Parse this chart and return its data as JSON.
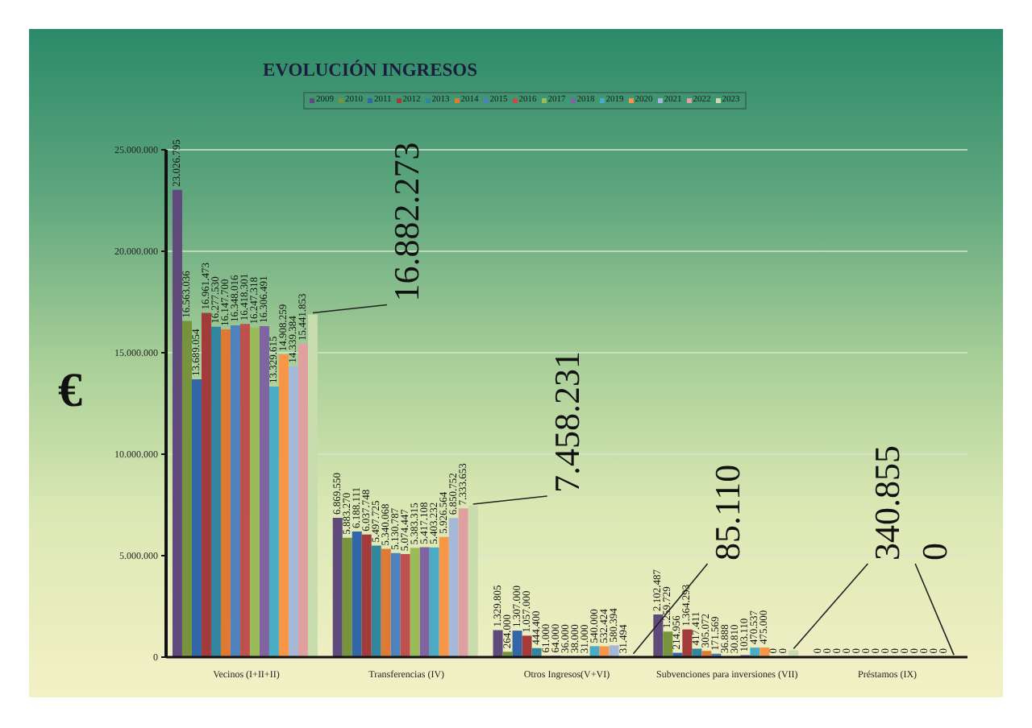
{
  "chart_data": {
    "type": "bar",
    "title": "EVOLUCIÓN INGRESOS",
    "ylabel": "€",
    "categories": [
      "Vecinos (I+II+II)",
      "Transferencias (IV)",
      "Otros Ingresos(V+VI)",
      "Subvenciones para inversiones (VII)",
      "Préstamos (IX)"
    ],
    "series": [
      {
        "name": "2009",
        "color": "#604a7b",
        "values": [
          23026795,
          6869550,
          1329805,
          2102487,
          0
        ],
        "value_labels": [
          "23.026.795",
          "6.869.550",
          "1.329.805",
          "2.102.487",
          "0"
        ]
      },
      {
        "name": "2010",
        "color": "#77933c",
        "values": [
          16563036,
          5883270,
          264000,
          1259729,
          0
        ],
        "value_labels": [
          "16.563.036",
          "5.883.270",
          "264.000",
          "1.259.729",
          "0"
        ]
      },
      {
        "name": "2011",
        "color": "#3366a8",
        "values": [
          13689054,
          6188111,
          1307000,
          214956,
          0
        ],
        "value_labels": [
          "13.689.054",
          "6.188.111",
          "1.307.000",
          "214.956",
          "0"
        ]
      },
      {
        "name": "2012",
        "color": "#a33b3b",
        "values": [
          16961473,
          6037748,
          1057000,
          1364293,
          0
        ],
        "value_labels": [
          "16.961.473",
          "6.037.748",
          "1.057.000",
          "1.364.293",
          "0"
        ]
      },
      {
        "name": "2013",
        "color": "#31859c",
        "values": [
          16277530,
          5497725,
          444400,
          417411,
          0
        ],
        "value_labels": [
          "16.277.530",
          "5.497.725",
          "444.400",
          "417.411",
          "0"
        ]
      },
      {
        "name": "2014",
        "color": "#df7a35",
        "values": [
          16147700,
          5340068,
          61000,
          305072,
          0
        ],
        "value_labels": [
          "16.147.700",
          "5.340.068",
          "61.000",
          "305.072",
          "0"
        ]
      },
      {
        "name": "2015",
        "color": "#4f81bd",
        "values": [
          16348016,
          5130787,
          64000,
          171569,
          0
        ],
        "value_labels": [
          "16.348.016",
          "5.130.787",
          "64.000",
          "171.569",
          "0"
        ]
      },
      {
        "name": "2016",
        "color": "#c0504d",
        "values": [
          16418301,
          5074447,
          36000,
          36888,
          0
        ],
        "value_labels": [
          "16.418.301",
          "5.074.447",
          "36.000",
          "36.888",
          "0"
        ]
      },
      {
        "name": "2017",
        "color": "#9bbb59",
        "values": [
          16247318,
          5383315,
          38000,
          30810,
          0
        ],
        "value_labels": [
          "16.247.318",
          "5.383.315",
          "38.000",
          "30.810",
          "0"
        ]
      },
      {
        "name": "2018",
        "color": "#8064a2",
        "values": [
          16306491,
          5417108,
          31000,
          103110,
          0
        ],
        "value_labels": [
          "16.306.491",
          "5.417.108",
          "31.000",
          "103.110",
          "0"
        ]
      },
      {
        "name": "2019",
        "color": "#4bacc6",
        "values": [
          13329615,
          5403232,
          540000,
          470537,
          0
        ],
        "value_labels": [
          "13.329.615",
          "5.403.232",
          "540.000",
          "470.537",
          "0"
        ]
      },
      {
        "name": "2020",
        "color": "#f79646",
        "values": [
          14908259,
          5926564,
          532424,
          475000,
          0
        ],
        "value_labels": [
          "14.908.259",
          "5.926.564",
          "532.424",
          "475.000",
          "0"
        ]
      },
      {
        "name": "2021",
        "color": "#a5b8d8",
        "values": [
          14339384,
          6850752,
          580394,
          0,
          0
        ],
        "value_labels": [
          "14.339.384",
          "6.850.752",
          "580.394",
          "0",
          "0"
        ]
      },
      {
        "name": "2022",
        "color": "#e0a0a0",
        "values": [
          15441853,
          7333653,
          31494,
          0,
          0
        ],
        "value_labels": [
          "15.441.853",
          "7.333.653",
          "31.494",
          "0",
          "0"
        ]
      },
      {
        "name": "2023",
        "color": "#c8dcae",
        "values": [
          16882273,
          7458231,
          85110,
          340855,
          0
        ],
        "value_labels": [
          "16.882.273",
          "7.458.231",
          "85.110",
          "340.855",
          "0"
        ]
      }
    ],
    "ylim": [
      0,
      25000000
    ],
    "yticks": [
      0,
      {
        "value": 5000000,
        "label": "5.000.000"
      },
      {
        "value": 10000000,
        "label": "10.000.000"
      },
      {
        "value": 15000000,
        "label": "15.000.000"
      },
      {
        "value": 20000000,
        "label": "20.000.000"
      },
      {
        "value": 25000000,
        "label": "25.000.000"
      }
    ],
    "grid": "y",
    "legend": "top"
  }
}
